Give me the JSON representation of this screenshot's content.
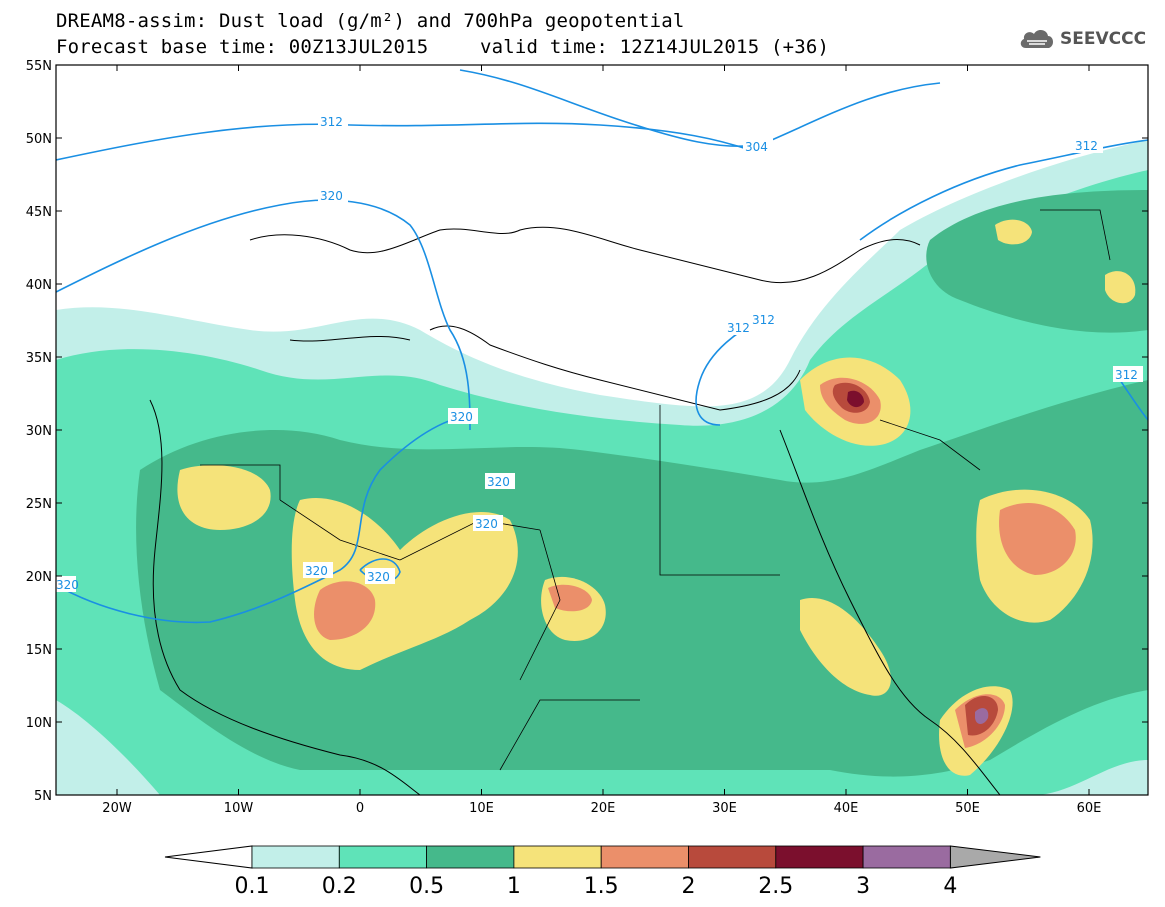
{
  "header": {
    "title_line1": "DREAM8-assim: Dust load (g/m²) and 700hPa geopotential",
    "title_line2_left": "Forecast base time: 00Z13JUL2015",
    "title_line2_right": "valid time: 12Z14JUL2015 (+36)",
    "logo_text": "SEEVCCC"
  },
  "map": {
    "lat_labels": [
      "55N",
      "50N",
      "45N",
      "40N",
      "35N",
      "30N",
      "25N",
      "20N",
      "15N",
      "10N",
      "5N"
    ],
    "lon_labels": [
      "20W",
      "10W",
      "0",
      "10E",
      "20E",
      "30E",
      "40E",
      "50E",
      "60E"
    ],
    "contour_labels": [
      "312",
      "304",
      "312",
      "320",
      "312",
      "312",
      "320",
      "320",
      "320",
      "320",
      "320",
      "320",
      "312"
    ],
    "colors": {
      "ocean": "#ffffff",
      "coast": "#000000",
      "contour": "#1a8fe3"
    }
  },
  "colorbar": {
    "labels": [
      "0.1",
      "0.2",
      "0.5",
      "1",
      "1.5",
      "2",
      "2.5",
      "3",
      "4"
    ],
    "colors": [
      "#c2efe9",
      "#5fe3b8",
      "#45b98b",
      "#f5e37a",
      "#eb8f6a",
      "#b84a3c",
      "#7b0f2d",
      "#9a6ba0",
      "#a9a9a9"
    ],
    "under_color": "#ffffff"
  }
}
